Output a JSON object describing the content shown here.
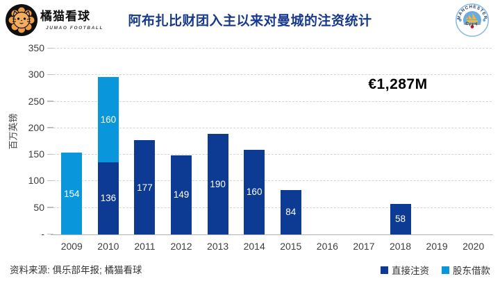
{
  "header": {
    "logo_title": "橘猫看球",
    "logo_subtitle": "JUMAO FOOTBALL",
    "title": "阿布扎比财团入主以来对曼城的注资统计",
    "badge_text_top": "MANCHESTER",
    "badge_text_bottom": "CITY"
  },
  "chart_data": {
    "type": "bar",
    "stacked": true,
    "title": "阿布扎比财团入主以来对曼城的注资统计",
    "ylabel": "百万英镑",
    "xlabel": "",
    "ylim": [
      0,
      350
    ],
    "ytick_interval": 50,
    "ytick_labels": [
      "-",
      "50",
      "100",
      "150",
      "200",
      "250",
      "300",
      "350"
    ],
    "zero_tick_label": "-",
    "grid": "horizontal-dashed",
    "legend_position": "bottom-right",
    "categories": [
      "2009",
      "2010",
      "2011",
      "2012",
      "2013",
      "2014",
      "2015",
      "2016",
      "2017",
      "2018",
      "2019",
      "2020"
    ],
    "series": [
      {
        "name": "直接注资",
        "color": "#0d3a92",
        "values": [
          0,
          136,
          177,
          149,
          190,
          160,
          84,
          0,
          0,
          58,
          0,
          0
        ]
      },
      {
        "name": "股东借款",
        "color": "#0a96db",
        "values": [
          154,
          160,
          0,
          0,
          0,
          0,
          0,
          0,
          0,
          0,
          0,
          0
        ]
      }
    ],
    "annotation": "€1,287M"
  },
  "footer": {
    "source": "资料来源: 俱乐部年报; 橘猫看球",
    "legend": [
      {
        "label": "直接注资",
        "color": "#0d3a92"
      },
      {
        "label": "股东借款",
        "color": "#0a96db"
      }
    ]
  },
  "colors": {
    "title": "#16398d",
    "bar_direct": "#0d3a92",
    "bar_loan": "#0a96db",
    "grid": "#d4d4d4",
    "axis_text": "#3d3d3d"
  }
}
